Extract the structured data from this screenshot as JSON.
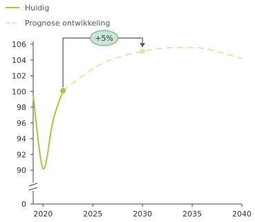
{
  "chart_data": {
    "type": "line",
    "title": "",
    "xlabel": "",
    "ylabel": "",
    "xlim": [
      2019,
      2040
    ],
    "ylim": [
      90,
      106
    ],
    "axis_break": true,
    "grid": false,
    "legend_placement": "top-left",
    "x_ticks": [
      2020,
      2025,
      2030,
      2035,
      2040
    ],
    "y_ticks": [
      0,
      90,
      92,
      94,
      96,
      98,
      100,
      102,
      104,
      106
    ],
    "series": [
      {
        "name": "Huidig",
        "style": "solid",
        "color": "#9ACD44",
        "points": [
          [
            2019,
            99.5
          ],
          [
            2020,
            90.2
          ],
          [
            2021,
            96.3
          ],
          [
            2022,
            100.1
          ]
        ]
      },
      {
        "name": "Prognose ontwikkeling",
        "style": "dashed",
        "color": "#D9EBAE",
        "points": [
          [
            2022,
            100.1
          ],
          [
            2024,
            102.0
          ],
          [
            2026,
            103.6
          ],
          [
            2028,
            104.5
          ],
          [
            2030,
            105.1
          ],
          [
            2032,
            105.5
          ],
          [
            2034,
            105.6
          ],
          [
            2036,
            105.5
          ],
          [
            2038,
            104.9
          ],
          [
            2040,
            104.2
          ]
        ]
      }
    ],
    "markers": [
      {
        "x": 2022,
        "y": 100.1,
        "color": "#9ACD44"
      },
      {
        "x": 2030,
        "y": 105.1,
        "color": "#D9EBAE"
      }
    ],
    "annotation": {
      "label": "+5%",
      "from_x": 2022,
      "to_x": 2030,
      "bubble_fill": "#C8E6D2",
      "bubble_stroke": "#6E9F80"
    }
  }
}
